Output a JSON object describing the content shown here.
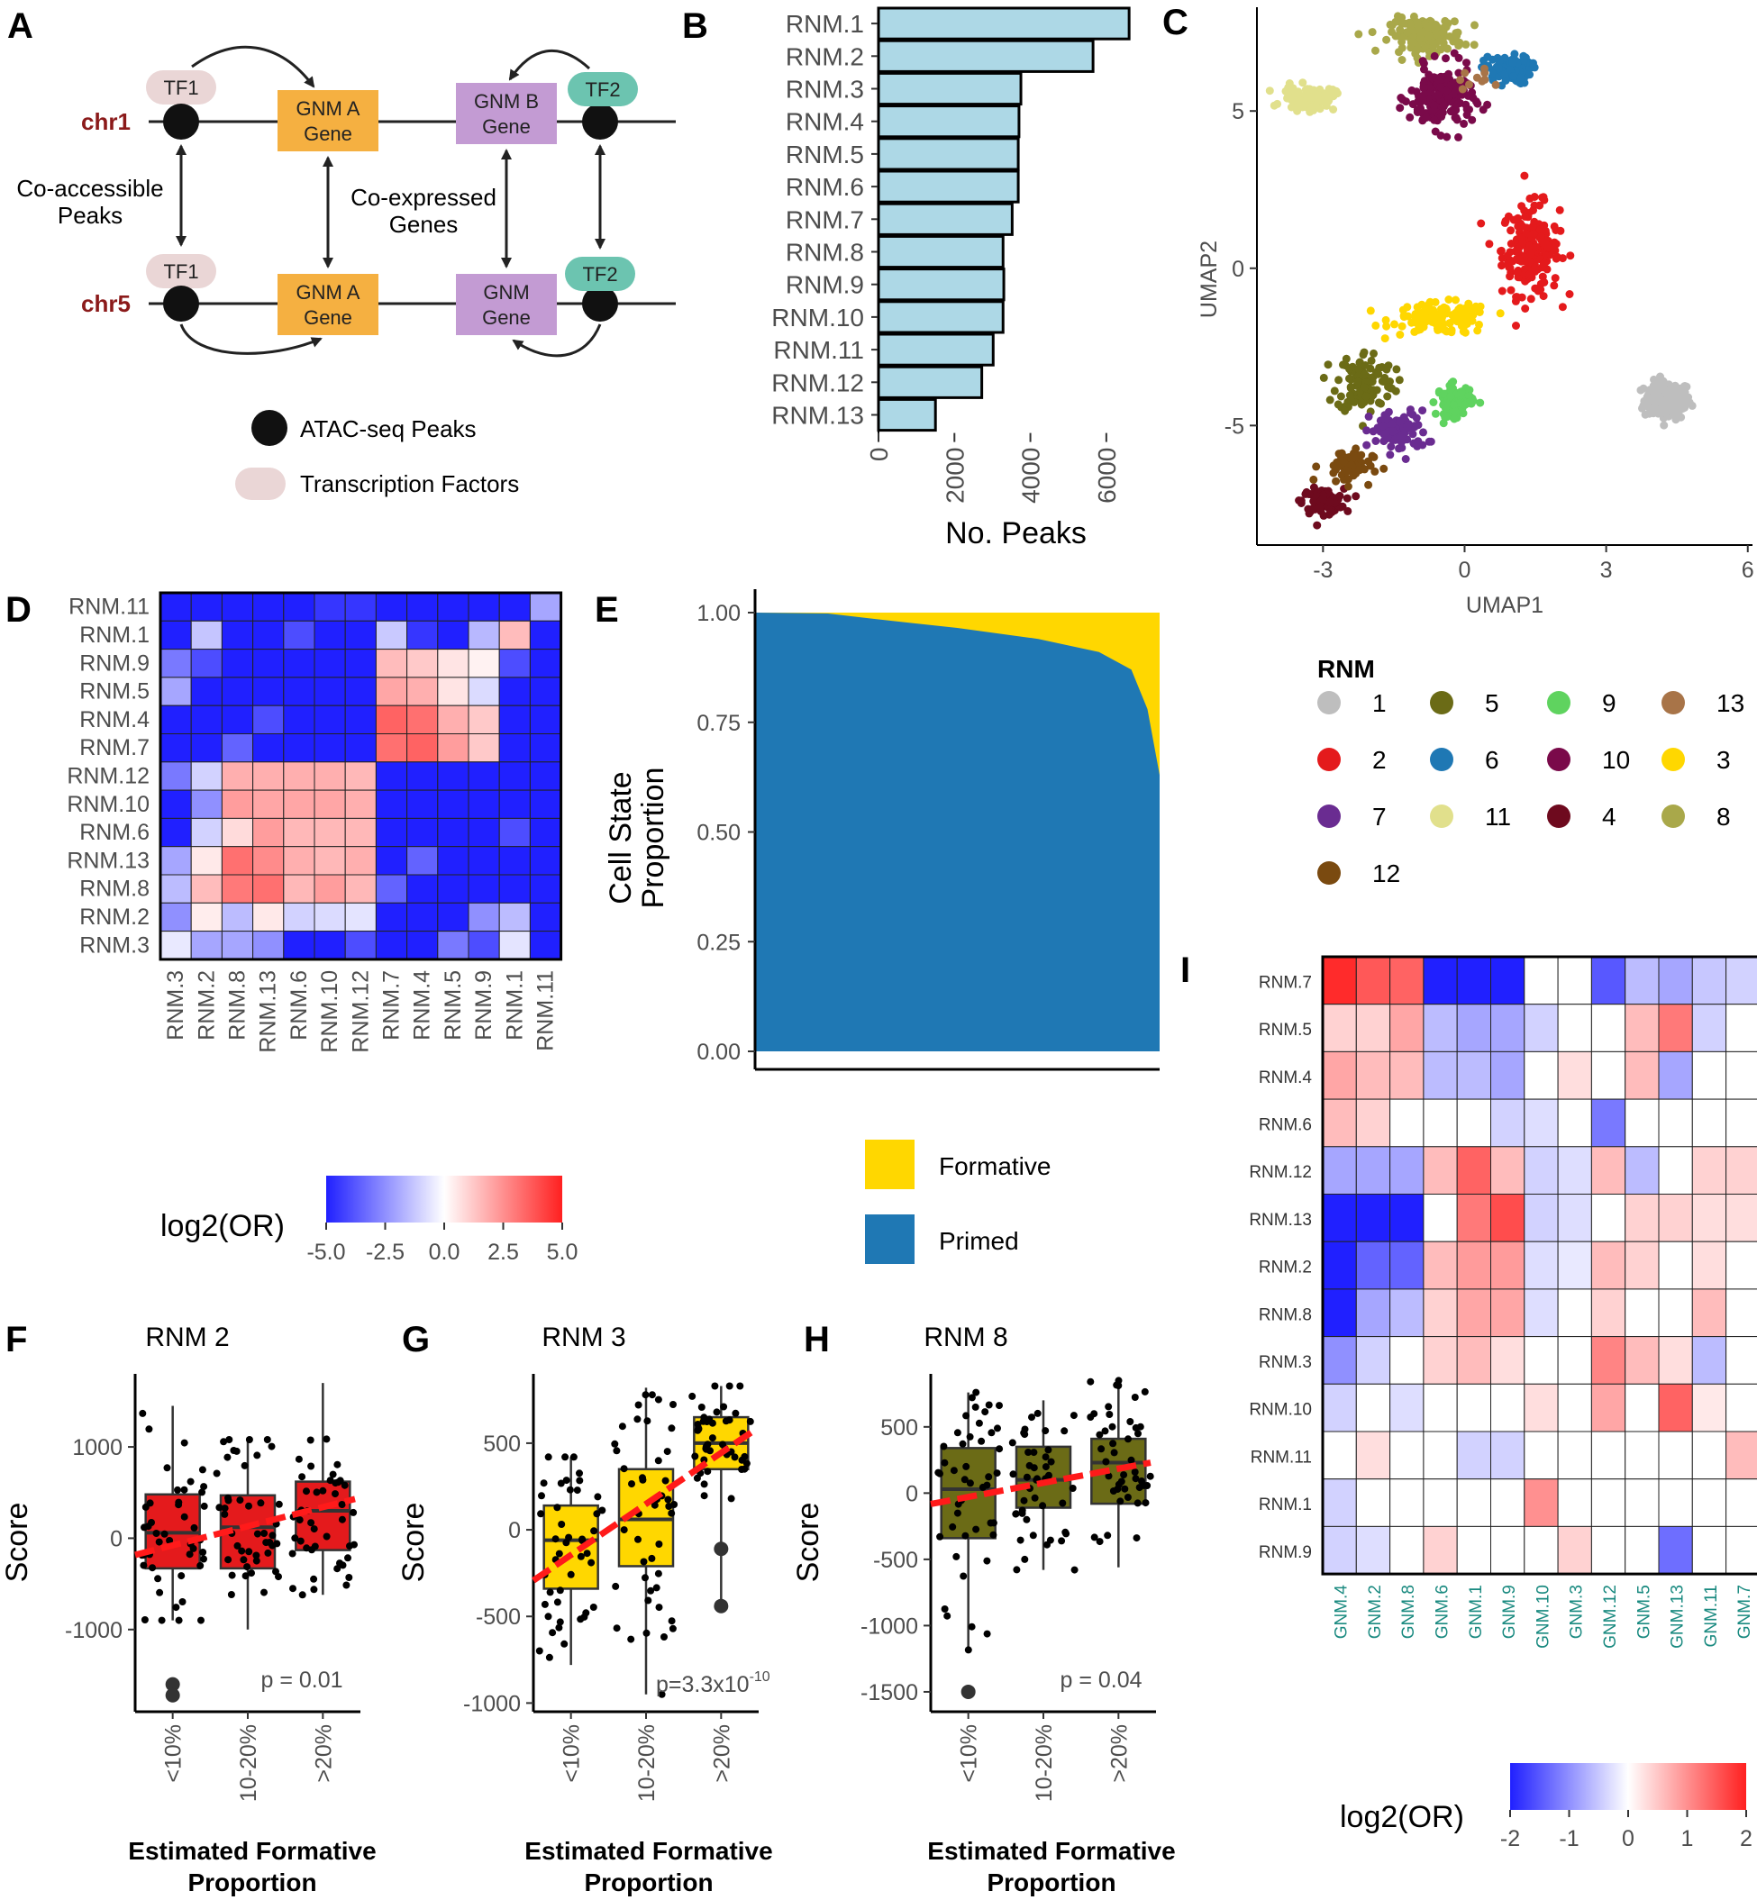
{
  "panels": {
    "A": "A",
    "B": "B",
    "C": "C",
    "D": "D",
    "E": "E",
    "F": "F",
    "G": "G",
    "H": "H",
    "I": "I"
  },
  "schematic": {
    "tf1": "TF1",
    "tf2": "TF2",
    "chr1": "chr1",
    "chr5": "chr5",
    "gnm_a_line1": "GNM A",
    "gnm_a_line2": "Gene",
    "gnm_b_line1": "GNM B",
    "gnm_b_line2": "Gene",
    "gnm_line1": "GNM",
    "gnm_line2": "Gene",
    "coacc_line1": "Co-accessible",
    "coacc_line2": "Peaks",
    "coexp_line1": "Co-expressed",
    "coexp_line2": "Genes",
    "legend_peaks": "ATAC-seq Peaks",
    "legend_tf": "Transcription Factors"
  },
  "colors": {
    "rnm": {
      "1": "#bebebe",
      "2": "#e41a1c",
      "3": "#ffd700",
      "4": "#6e0a1e",
      "5": "#6b6b16",
      "6": "#1f78b4",
      "7": "#6a2c91",
      "8": "#a9a84a",
      "9": "#5fd35f",
      "10": "#7a0a4a",
      "11": "#e1e08c",
      "12": "#7a4a10",
      "13": "#a87448"
    },
    "bar": "#add8e6",
    "formative": "#ffd700",
    "primed": "#1f78b4",
    "gene_box": "#f5b041",
    "gnm_box": "#c39bd3",
    "tf1": "#ead6d6",
    "tf2": "#6cc4b0"
  },
  "chart_data": [
    {
      "panel": "B",
      "type": "bar",
      "orientation": "horizontal",
      "categories": [
        "RNM.1",
        "RNM.2",
        "RNM.3",
        "RNM.4",
        "RNM.5",
        "RNM.6",
        "RNM.7",
        "RNM.8",
        "RNM.9",
        "RNM.10",
        "RNM.11",
        "RNM.12",
        "RNM.13"
      ],
      "values": [
        6600,
        5650,
        3750,
        3700,
        3680,
        3680,
        3520,
        3280,
        3300,
        3280,
        3020,
        2720,
        1500
      ],
      "xlabel": "No. Peaks",
      "xticks": [
        0,
        2000,
        4000,
        6000
      ],
      "xlim": [
        0,
        7000
      ]
    },
    {
      "panel": "C",
      "type": "scatter",
      "title": "",
      "xlabel": "UMAP1",
      "ylabel": "UMAP2",
      "xticks": [
        -3,
        0,
        3,
        6
      ],
      "yticks": [
        5,
        0,
        -5
      ],
      "xlim": [
        -4.4,
        6.1
      ],
      "ylim": [
        -8.8,
        8.3
      ],
      "legend_title": "RNM",
      "legend": [
        "1",
        "5",
        "9",
        "13",
        "2",
        "6",
        "10",
        "3",
        "7",
        "11",
        "4",
        "8",
        "12"
      ],
      "clusters": [
        {
          "id": "1",
          "cx": 4.3,
          "cy": -4.2,
          "sx": 0.45,
          "sy": 0.55,
          "n": 170
        },
        {
          "id": "2",
          "cx": 1.4,
          "cy": 0.6,
          "sx": 0.55,
          "sy": 1.3,
          "n": 200
        },
        {
          "id": "3",
          "cx": -0.5,
          "cy": -1.6,
          "sx": 0.95,
          "sy": 0.45,
          "n": 130
        },
        {
          "id": "4",
          "cx": -3.0,
          "cy": -7.4,
          "sx": 0.4,
          "sy": 0.35,
          "n": 110
        },
        {
          "id": "5",
          "cx": -2.1,
          "cy": -3.6,
          "sx": 0.55,
          "sy": 0.9,
          "n": 120
        },
        {
          "id": "6",
          "cx": 0.9,
          "cy": 6.3,
          "sx": 0.45,
          "sy": 0.4,
          "n": 120
        },
        {
          "id": "7",
          "cx": -1.4,
          "cy": -5.2,
          "sx": 0.55,
          "sy": 0.6,
          "n": 90
        },
        {
          "id": "8",
          "cx": -0.8,
          "cy": 7.4,
          "sx": 0.7,
          "sy": 0.5,
          "n": 150
        },
        {
          "id": "9",
          "cx": -0.2,
          "cy": -4.2,
          "sx": 0.35,
          "sy": 0.45,
          "n": 90
        },
        {
          "id": "10",
          "cx": -0.5,
          "cy": 5.4,
          "sx": 0.6,
          "sy": 0.9,
          "n": 190
        },
        {
          "id": "11",
          "cx": -3.3,
          "cy": 5.4,
          "sx": 0.5,
          "sy": 0.35,
          "n": 90
        },
        {
          "id": "12",
          "cx": -2.5,
          "cy": -6.3,
          "sx": 0.5,
          "sy": 0.5,
          "n": 60
        },
        {
          "id": "13",
          "cx": 0.2,
          "cy": 6.0,
          "sx": 0.3,
          "sy": 0.3,
          "n": 10
        }
      ]
    },
    {
      "panel": "D",
      "type": "heatmap",
      "rows": [
        "RNM.11",
        "RNM.1",
        "RNM.9",
        "RNM.5",
        "RNM.4",
        "RNM.7",
        "RNM.12",
        "RNM.10",
        "RNM.6",
        "RNM.13",
        "RNM.8",
        "RNM.2",
        "RNM.3"
      ],
      "cols": [
        "RNM.3",
        "RNM.2",
        "RNM.8",
        "RNM.13",
        "RNM.6",
        "RNM.10",
        "RNM.12",
        "RNM.7",
        "RNM.4",
        "RNM.5",
        "RNM.9",
        "RNM.1",
        "RNM.11"
      ],
      "values": [
        [
          -5,
          -5,
          -5,
          -5,
          -5,
          -4.5,
          -4.5,
          -5,
          -5,
          -5,
          -5,
          -5,
          -2
        ],
        [
          -5,
          -1.3,
          -5,
          -5,
          -4,
          -5,
          -5,
          -1.2,
          -4.5,
          -5,
          -1.6,
          1.5,
          -5
        ],
        [
          -3,
          -4,
          -5,
          -5,
          -5,
          -5,
          -5,
          1.5,
          1.2,
          0.6,
          0.3,
          -4,
          -5
        ],
        [
          -2,
          -5,
          -5,
          -5,
          -5,
          -5,
          -5,
          2,
          1.8,
          0.6,
          -0.8,
          -5,
          -5
        ],
        [
          -5,
          -5,
          -5,
          -4,
          -5,
          -5,
          -5,
          3.5,
          3.2,
          1.8,
          1.2,
          -5,
          -5
        ],
        [
          -5,
          -5,
          -3.5,
          -5,
          -5,
          -5,
          -5,
          3.2,
          3.5,
          2.2,
          1.2,
          -5,
          -5
        ],
        [
          -3,
          -1,
          1.8,
          1.8,
          1.8,
          1.8,
          1.6,
          -5,
          -5,
          -5,
          -5,
          -5,
          -5
        ],
        [
          -5,
          -2.5,
          2.2,
          2,
          2,
          2,
          1.8,
          -5,
          -5,
          -5,
          -5,
          -5,
          -5
        ],
        [
          -5,
          -1,
          0.8,
          2.2,
          1.6,
          1.6,
          1.6,
          -5,
          -5,
          -5,
          -5,
          -4,
          -5
        ],
        [
          -2,
          0.5,
          3.2,
          2.6,
          1.8,
          1.6,
          1.8,
          -5,
          -3.5,
          -5,
          -5,
          -5,
          -5
        ],
        [
          -1.5,
          1.5,
          3,
          3.2,
          1.6,
          2.2,
          1.6,
          -3.5,
          -5,
          -5,
          -5,
          -5,
          -5
        ],
        [
          -2.5,
          0.4,
          -1.5,
          0.5,
          -1,
          -0.8,
          -0.6,
          -5,
          -5,
          -5,
          -2.5,
          -1.5,
          -5
        ],
        [
          -0.5,
          -2,
          -2,
          -2.5,
          -5,
          -5,
          -4,
          -5,
          -5,
          -3,
          -4,
          -0.6,
          -5
        ]
      ],
      "colorbar_title": "log2(OR)",
      "colorbar_ticks": [
        "-5.0",
        "-2.5",
        "0.0",
        "2.5",
        "5.0"
      ],
      "range": [
        -5,
        5
      ]
    },
    {
      "panel": "E",
      "type": "area",
      "ylabel_line1": "Cell State",
      "ylabel_line2": "Proportion",
      "yticks": [
        "1.00",
        "0.75",
        "0.50",
        "0.25",
        "0.00"
      ],
      "ylim": [
        0,
        1
      ],
      "formative_fraction_breakpoints": {
        "position": [
          0,
          0.18,
          0.3,
          0.5,
          0.7,
          0.85,
          0.93,
          0.97,
          1.0
        ],
        "formative": [
          0,
          0.002,
          0.015,
          0.035,
          0.06,
          0.09,
          0.13,
          0.22,
          0.37
        ]
      },
      "legend": [
        "Formative",
        "Primed"
      ]
    },
    {
      "panel": "F",
      "type": "box",
      "title": "RNM 2",
      "categories": [
        "<10%",
        "10-20%",
        ">20%"
      ],
      "ylabel": "Score",
      "xlabel_line1": "Estimated Formative",
      "xlabel_line2": "Proportion",
      "yticks": [
        1000,
        0,
        -1000
      ],
      "ylim": [
        -1900,
        1800
      ],
      "boxes": [
        {
          "q1": -330,
          "med": 60,
          "q3": 480,
          "lo": -900,
          "hi": 1450
        },
        {
          "q1": -330,
          "med": 120,
          "q3": 470,
          "lo": -1000,
          "hi": 1080
        },
        {
          "q1": -130,
          "med": 300,
          "q3": 620,
          "lo": -620,
          "hi": 1700
        }
      ],
      "outliers": [
        [
          0,
          -1600
        ],
        [
          0,
          -1720
        ]
      ],
      "trend": [
        -60,
        430
      ],
      "annotation": "p = 0.01",
      "color": "#e41a1c"
    },
    {
      "panel": "G",
      "type": "box",
      "title": "RNM 3",
      "categories": [
        "<10%",
        "10-20%",
        ">20%"
      ],
      "ylabel": "Score",
      "xlabel_line1": "Estimated Formative",
      "xlabel_line2": "Proportion",
      "yticks": [
        500,
        0,
        -500,
        -1000
      ],
      "ylim": [
        -1050,
        900
      ],
      "boxes": [
        {
          "q1": -340,
          "med": -60,
          "q3": 140,
          "lo": -780,
          "hi": 420
        },
        {
          "q1": -210,
          "med": 60,
          "q3": 350,
          "lo": -950,
          "hi": 820
        },
        {
          "q1": 350,
          "med": 500,
          "q3": 650,
          "lo": -420,
          "hi": 830
        }
      ],
      "outliers": [
        [
          2,
          -110
        ],
        [
          2,
          -440
        ]
      ],
      "trend": [
        -120,
        570
      ],
      "annotation": "p=3.3x10",
      "annotation_exp": "-10",
      "color": "#ffd700"
    },
    {
      "panel": "H",
      "type": "box",
      "title": "RNM 8",
      "categories": [
        "<10%",
        "10-20%",
        ">20%"
      ],
      "ylabel": "Score",
      "xlabel_line1": "Estimated Formative",
      "xlabel_line2": "Proportion",
      "yticks": [
        500,
        0,
        -500,
        -1000,
        -1500
      ],
      "ylim": [
        -1650,
        900
      ],
      "boxes": [
        {
          "q1": -340,
          "med": 30,
          "q3": 340,
          "lo": -1200,
          "hi": 760
        },
        {
          "q1": -110,
          "med": 100,
          "q3": 350,
          "lo": -580,
          "hi": 700
        },
        {
          "q1": -80,
          "med": 230,
          "q3": 410,
          "lo": -560,
          "hi": 850
        }
      ],
      "outliers": [
        [
          0,
          -1500
        ]
      ],
      "trend": [
        -20,
        230
      ],
      "annotation": "p = 0.04",
      "color": "#6b6b16"
    },
    {
      "panel": "I",
      "type": "heatmap",
      "rows": [
        "RNM.7",
        "RNM.5",
        "RNM.4",
        "RNM.6",
        "RNM.12",
        "RNM.13",
        "RNM.2",
        "RNM.8",
        "RNM.3",
        "RNM.10",
        "RNM.11",
        "RNM.1",
        "RNM.9"
      ],
      "cols": [
        "GNM.4",
        "GNM.2",
        "GNM.8",
        "GNM.6",
        "GNM.1",
        "GNM.9",
        "GNM.10",
        "GNM.3",
        "GNM.12",
        "GNM.5",
        "GNM.13",
        "GNM.11",
        "GNM.7"
      ],
      "values": [
        [
          1.9,
          1.5,
          1.4,
          -2,
          -2,
          -2,
          0,
          0,
          -1.5,
          -0.6,
          -0.8,
          -0.5,
          -0.4
        ],
        [
          0.4,
          0.4,
          0.8,
          -0.6,
          -0.8,
          -0.8,
          -0.4,
          0,
          0,
          0.6,
          1.2,
          -0.4,
          0
        ],
        [
          0.8,
          0.6,
          0.6,
          -0.6,
          -0.6,
          -0.8,
          0,
          0.3,
          0,
          0.6,
          -0.8,
          0,
          0
        ],
        [
          0.6,
          0.4,
          0,
          0,
          0,
          -0.4,
          -0.3,
          0,
          -1.2,
          0,
          0,
          0,
          0
        ],
        [
          -0.8,
          -0.8,
          -0.8,
          0.6,
          1.4,
          0.6,
          -0.4,
          -0.3,
          0.6,
          -0.6,
          0,
          0.4,
          0.4
        ],
        [
          -2,
          -2,
          -2,
          0,
          1.2,
          1.6,
          -0.4,
          -0.3,
          0,
          0.4,
          0.4,
          0.3,
          0.3
        ],
        [
          -2,
          -1.4,
          -1.4,
          0.6,
          0.9,
          0.9,
          -0.3,
          -0.2,
          0.6,
          0.4,
          0,
          0.3,
          0
        ],
        [
          -2,
          -0.8,
          -0.6,
          0.4,
          0.8,
          0.8,
          -0.3,
          0,
          0.4,
          0,
          0,
          0.6,
          0
        ],
        [
          -1,
          -0.4,
          0,
          0.4,
          0.6,
          0.3,
          0,
          0,
          1.1,
          0.6,
          0.3,
          -0.6,
          0
        ],
        [
          -0.4,
          0,
          -0.3,
          0,
          0,
          0,
          0.3,
          0,
          0.8,
          0,
          1.4,
          0.2,
          0
        ],
        [
          0,
          0.3,
          0,
          0,
          -0.4,
          -0.4,
          0,
          0,
          0,
          0,
          0,
          0,
          0.6
        ],
        [
          -0.4,
          0,
          0,
          0,
          0,
          0,
          1,
          0,
          0,
          0,
          0,
          0,
          0
        ],
        [
          -0.4,
          -0.3,
          0,
          0.4,
          0,
          0,
          0,
          0.4,
          0,
          0,
          -1.3,
          0,
          0
        ]
      ],
      "colorbar_title": "log2(OR)",
      "colorbar_ticks": [
        "-2",
        "-1",
        "0",
        "1",
        "2"
      ],
      "range": [
        -2,
        2
      ]
    }
  ]
}
